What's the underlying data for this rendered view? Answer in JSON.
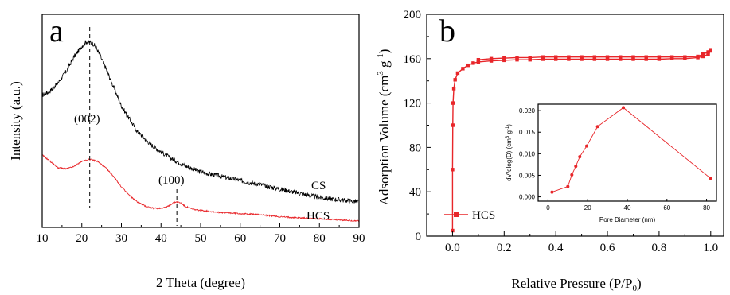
{
  "chart_data": [
    {
      "type": "line",
      "panel_label": "a",
      "xlabel": "2 Theta (degree)",
      "ylabel": "Intensity (a.u.)",
      "xlim": [
        10,
        90
      ],
      "xticks": [
        10,
        20,
        30,
        40,
        50,
        60,
        70,
        80,
        90
      ],
      "annotations": [
        {
          "text": "(002)",
          "x": 22
        },
        {
          "text": "(100)",
          "x": 44
        }
      ],
      "series": [
        {
          "name": "CS",
          "color": "#000000",
          "x": [
            10,
            12,
            14,
            16,
            18,
            20,
            21,
            22,
            23,
            24,
            26,
            28,
            30,
            34,
            38,
            42,
            46,
            50,
            55,
            60,
            65,
            70,
            75,
            80,
            85,
            90
          ],
          "y": [
            0.62,
            0.64,
            0.68,
            0.73,
            0.8,
            0.85,
            0.87,
            0.87,
            0.86,
            0.83,
            0.75,
            0.66,
            0.57,
            0.45,
            0.38,
            0.33,
            0.29,
            0.26,
            0.24,
            0.22,
            0.2,
            0.18,
            0.16,
            0.14,
            0.13,
            0.12
          ]
        },
        {
          "name": "HCS",
          "color": "#e8262a",
          "x": [
            10,
            12,
            14,
            16,
            18,
            20,
            22,
            24,
            26,
            28,
            30,
            32,
            34,
            36,
            38,
            40,
            42,
            43,
            44,
            45,
            46,
            48,
            50,
            55,
            60,
            65,
            70,
            75,
            80,
            85,
            90
          ],
          "y": [
            0.34,
            0.31,
            0.28,
            0.275,
            0.285,
            0.31,
            0.32,
            0.31,
            0.28,
            0.24,
            0.19,
            0.15,
            0.12,
            0.1,
            0.09,
            0.09,
            0.1,
            0.115,
            0.12,
            0.115,
            0.1,
            0.085,
            0.08,
            0.07,
            0.065,
            0.06,
            0.05,
            0.045,
            0.04,
            0.035,
            0.03
          ]
        }
      ]
    },
    {
      "type": "line",
      "panel_label": "b",
      "xlabel": "Relative Pressure (P/P",
      "xlabel_sub": "0",
      "xlabel_end": ")",
      "ylabel": "Adsorption Volume (cm",
      "ylabel_sup1": "3",
      "ylabel_mid": " g",
      "ylabel_sup2": "-1",
      "ylabel_end": ")",
      "xlim": [
        -0.1,
        1.05
      ],
      "ylim": [
        0,
        200
      ],
      "xticks": [
        "0.0",
        "0.2",
        "0.4",
        "0.6",
        "0.8",
        "1.0"
      ],
      "yticks": [
        "0",
        "40",
        "80",
        "120",
        "160",
        "200"
      ],
      "legend": "bottom-left",
      "series": [
        {
          "name": "HCS",
          "color": "#e8262a",
          "x": [
            0.0,
            0.0,
            0.001,
            0.002,
            0.005,
            0.01,
            0.02,
            0.04,
            0.06,
            0.08,
            0.1,
            0.15,
            0.2,
            0.25,
            0.3,
            0.35,
            0.4,
            0.45,
            0.5,
            0.55,
            0.6,
            0.65,
            0.7,
            0.75,
            0.8,
            0.85,
            0.9,
            0.95,
            0.97,
            0.99,
            1.0
          ],
          "y": [
            5,
            60,
            100,
            120,
            133,
            141,
            147,
            151,
            154,
            156,
            157,
            158,
            158.5,
            159,
            159,
            159.5,
            159.5,
            159.5,
            159.5,
            159.5,
            159.5,
            159.5,
            159.5,
            159.5,
            159.5,
            160,
            160,
            161,
            162,
            164,
            167
          ]
        },
        {
          "name": "",
          "color": "#e8262a",
          "x": [
            1.0,
            0.99,
            0.97,
            0.95,
            0.9,
            0.85,
            0.8,
            0.75,
            0.7,
            0.65,
            0.6,
            0.55,
            0.5,
            0.45,
            0.4,
            0.35,
            0.3,
            0.25,
            0.2,
            0.15,
            0.1
          ],
          "y": [
            168,
            166,
            164,
            162,
            161.5,
            161.5,
            161.5,
            161.5,
            161.5,
            161.5,
            161.5,
            161.5,
            161.5,
            161.5,
            161.5,
            161.5,
            161,
            161,
            160.5,
            160,
            159
          ]
        }
      ],
      "inset": {
        "type": "line",
        "xlabel": "Pore Diameter (nm)",
        "ylabel": "dV/dlog(D) (cm",
        "ylabel_sup1": "3",
        "ylabel_mid": " g",
        "ylabel_sup2": "-1",
        "ylabel_end": ")",
        "xlim": [
          -5,
          85
        ],
        "ylim": [
          -0.001,
          0.0215
        ],
        "xticks": [
          "0",
          "20",
          "40",
          "60",
          "80"
        ],
        "yticks": [
          "0.000",
          "0.005",
          "0.010",
          "0.015",
          "0.020"
        ],
        "series": [
          {
            "name": "",
            "color": "#e8262a",
            "x": [
              2,
              10,
              12,
              14,
              16,
              19.5,
              25,
              38,
              82
            ],
            "y": [
              0.0011,
              0.0024,
              0.0051,
              0.0071,
              0.0093,
              0.0118,
              0.0163,
              0.0207,
              0.0043
            ]
          }
        ]
      }
    }
  ]
}
